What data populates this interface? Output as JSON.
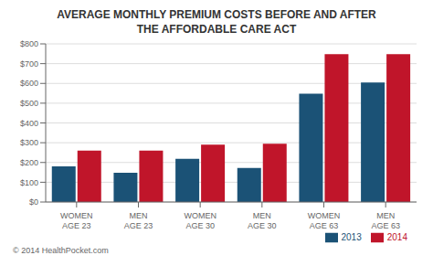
{
  "chart_data": {
    "type": "bar",
    "title": "AVERAGE MONTHLY PREMIUM COSTS BEFORE AND AFTER\nTHE AFFORDABLE CARE ACT",
    "categories": [
      "WOMEN\nAGE 23",
      "MEN\nAGE 23",
      "WOMEN\nAGE 30",
      "MEN\nAGE 30",
      "WOMEN\nAGE 63",
      "MEN\nAGE 63"
    ],
    "series": [
      {
        "name": "2013",
        "color": "#1b5276",
        "values": [
          180,
          148,
          218,
          172,
          548,
          605
        ]
      },
      {
        "name": "2014",
        "color": "#c0152a",
        "values": [
          260,
          260,
          290,
          295,
          748,
          748
        ]
      }
    ],
    "ylim": [
      0,
      800
    ],
    "yticks": [
      {
        "value": 0,
        "label": "$0"
      },
      {
        "value": 100,
        "label": "$100"
      },
      {
        "value": 200,
        "label": "$200"
      },
      {
        "value": 300,
        "label": "$300"
      },
      {
        "value": 400,
        "label": "$400"
      },
      {
        "value": 500,
        "label": "$500"
      },
      {
        "value": 600,
        "label": "$600"
      },
      {
        "value": 700,
        "label": "$700"
      },
      {
        "value": 800,
        "label": "$800"
      }
    ],
    "grid": true,
    "legend": "lower right",
    "annotations": [
      "© 2014 HealthPocket.com"
    ]
  }
}
